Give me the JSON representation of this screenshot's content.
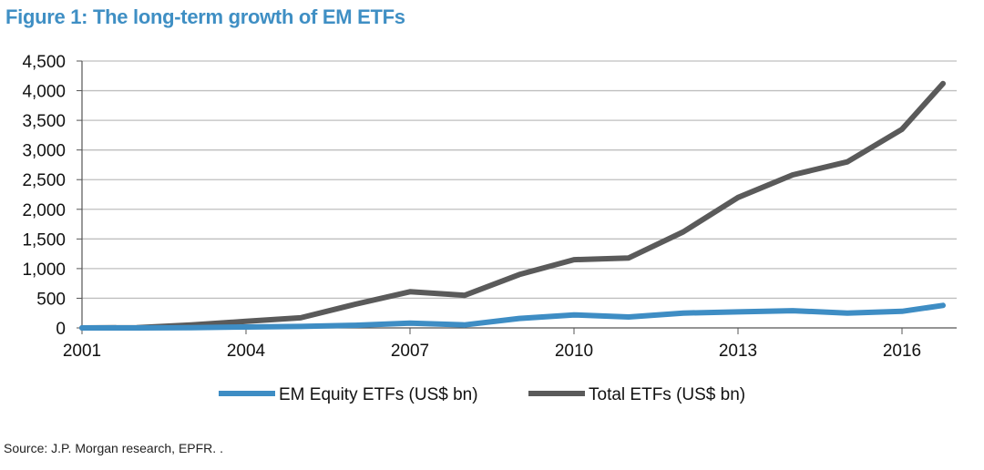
{
  "title": "Figure 1: The long-term growth of EM ETFs",
  "source": "Source: J.P. Morgan research, EPFR. .",
  "colors": {
    "em": "#3e8dc4",
    "total": "#5a5a5a",
    "title": "#3f8fc4",
    "grid": "#bfbfbf"
  },
  "chart_data": {
    "type": "line",
    "title": "Figure 1: The long-term growth of EM ETFs",
    "xlim": [
      2001,
      2017
    ],
    "ylim": [
      0,
      4500
    ],
    "ystep": 500,
    "grid": true,
    "legend_position": "bottom",
    "x_ticks": [
      2001,
      2004,
      2007,
      2010,
      2013,
      2016
    ],
    "x_tick_labels": [
      "2001",
      "2004",
      "2007",
      "2010",
      "2013",
      "2016"
    ],
    "y_tick_labels": [
      "0",
      "500",
      "1,000",
      "1,500",
      "2,000",
      "2,500",
      "3,000",
      "3,500",
      "4,000",
      "4,500"
    ],
    "x": [
      2001,
      2002,
      2003,
      2004,
      2005,
      2006,
      2007,
      2008,
      2009,
      2010,
      2011,
      2012,
      2013,
      2014,
      2015,
      2016,
      2016.75
    ],
    "series": [
      {
        "name": "EM Equity ETFs (US$ bn)",
        "color": "#3e8dc4",
        "values": [
          0,
          0,
          5,
          15,
          25,
          45,
          80,
          50,
          160,
          220,
          185,
          250,
          270,
          290,
          250,
          280,
          380
        ]
      },
      {
        "name": "Total ETFs (US$ bn)",
        "color": "#5a5a5a",
        "values": [
          0,
          5,
          50,
          110,
          170,
          400,
          610,
          550,
          900,
          1150,
          1180,
          1620,
          2200,
          2580,
          2800,
          3350,
          4120
        ]
      }
    ]
  }
}
